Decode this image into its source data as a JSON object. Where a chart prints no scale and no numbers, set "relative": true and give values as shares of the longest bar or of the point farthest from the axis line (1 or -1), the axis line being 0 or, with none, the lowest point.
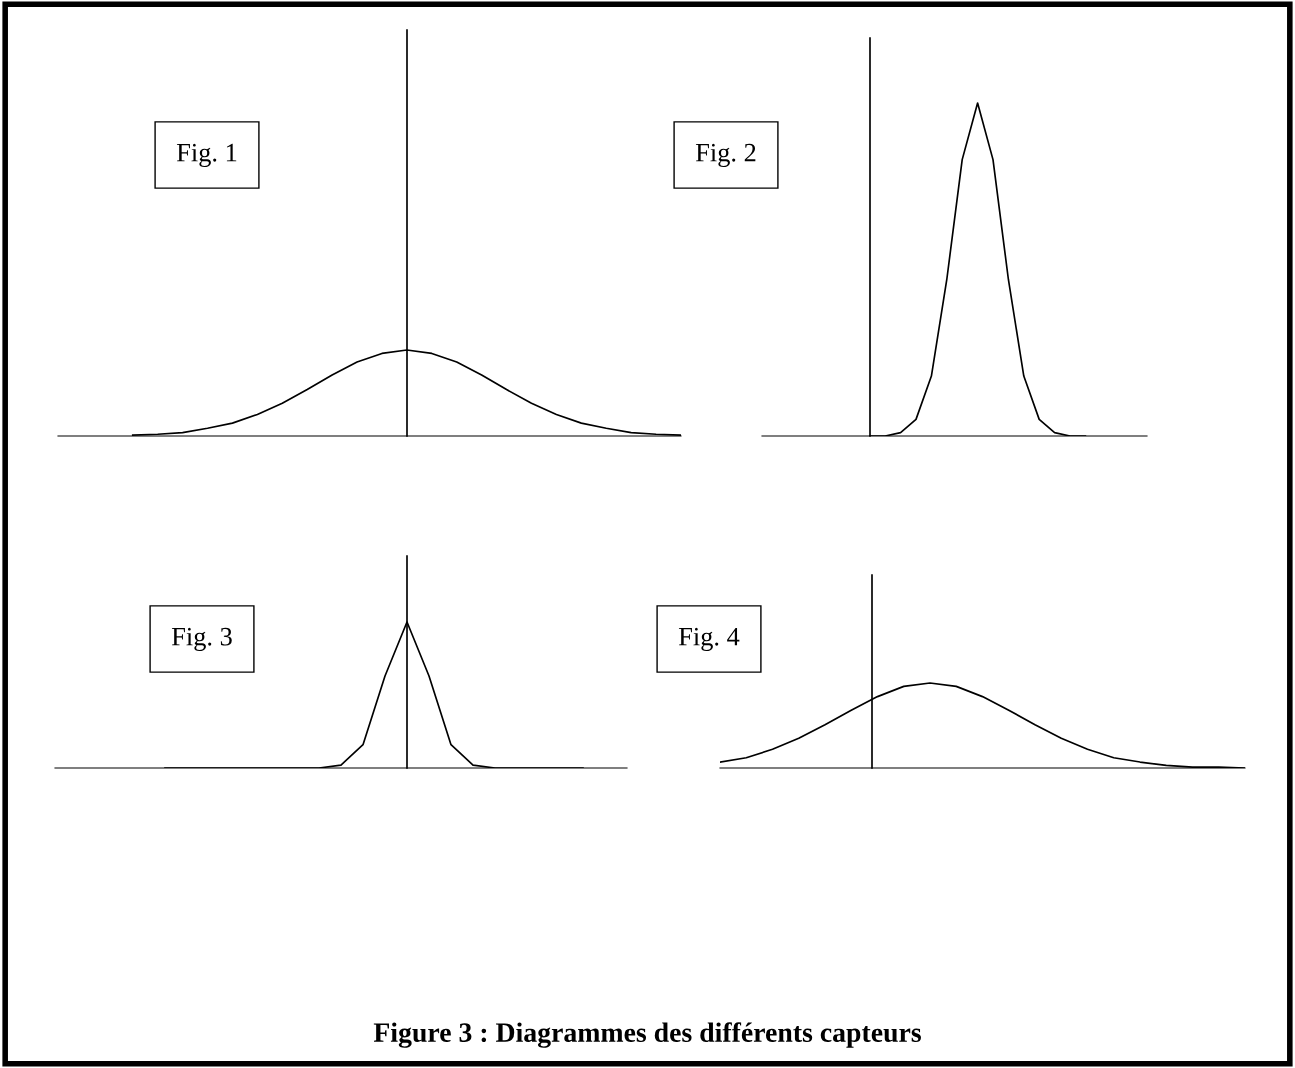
{
  "chart_data": [
    {
      "type": "line",
      "title": "Fig. 1",
      "relative": true,
      "categories": [
        null,
        null,
        null,
        null,
        null,
        null,
        null,
        null,
        null,
        null,
        null,
        null,
        null,
        null,
        null,
        null,
        null,
        null,
        null,
        null,
        null,
        null,
        null,
        null,
        null,
        null
      ],
      "series": [
        {
          "color": "#000000",
          "values": [
            null,
            null,
            null,
            0.01,
            0.02,
            0.04,
            0.09,
            0.15,
            0.25,
            0.38,
            0.54,
            0.71,
            0.86,
            0.96,
            1,
            0.96,
            0.86,
            0.71,
            0.54,
            0.38,
            0.25,
            0.15,
            0.09,
            0.04,
            0.02,
            0.01
          ]
        }
      ],
      "grid": false,
      "legend": false,
      "marker": "none",
      "line_style": "solid"
    },
    {
      "type": "line",
      "title": "Fig. 2",
      "relative": true,
      "categories": [
        null,
        null,
        null,
        null,
        null,
        null,
        null,
        null,
        null,
        null,
        null,
        null,
        null,
        null,
        null,
        null,
        null,
        null,
        null,
        null,
        null,
        null,
        null,
        null,
        null,
        null
      ],
      "series": [
        {
          "color": "#000000",
          "values": [
            null,
            null,
            null,
            null,
            null,
            null,
            null,
            0,
            0,
            0.01,
            0.05,
            0.18,
            0.47,
            0.83,
            1,
            0.83,
            0.47,
            0.18,
            0.05,
            0.01,
            0,
            0,
            null,
            null,
            null,
            null
          ]
        }
      ],
      "grid": false,
      "legend": false,
      "marker": "none",
      "line_style": "solid"
    },
    {
      "type": "line",
      "title": "Fig. 3",
      "relative": true,
      "categories": [
        null,
        null,
        null,
        null,
        null,
        null,
        null,
        null,
        null,
        null,
        null,
        null,
        null,
        null,
        null,
        null,
        null,
        null,
        null,
        null,
        null,
        null,
        null,
        null,
        null,
        null,
        null
      ],
      "series": [
        {
          "color": "#000000",
          "values": [
            null,
            null,
            null,
            null,
            null,
            0,
            0,
            0,
            0,
            0,
            0,
            0,
            0,
            0.02,
            0.16,
            0.63,
            1,
            0.63,
            0.16,
            0.02,
            0,
            0,
            0,
            0,
            0,
            null,
            null
          ]
        }
      ],
      "grid": false,
      "legend": false,
      "marker": "none",
      "line_style": "solid"
    },
    {
      "type": "line",
      "title": "Fig. 4",
      "relative": true,
      "categories": [
        null,
        null,
        null,
        null,
        null,
        null,
        null,
        null,
        null,
        null,
        null,
        null,
        null,
        null,
        null,
        null,
        null,
        null,
        null,
        null,
        null
      ],
      "series": [
        {
          "color": "#000000",
          "values": [
            0.07,
            0.12,
            0.22,
            0.35,
            0.51,
            0.68,
            0.84,
            0.96,
            1,
            0.96,
            0.84,
            0.68,
            0.51,
            0.35,
            0.22,
            0.12,
            0.07,
            0.03,
            0.01,
            0.01,
            0
          ]
        }
      ],
      "grid": false,
      "legend": false,
      "marker": "none",
      "line_style": "solid",
      "annotations": [
        "Figure 3 : Diagrammes des différents capteurs"
      ]
    }
  ]
}
